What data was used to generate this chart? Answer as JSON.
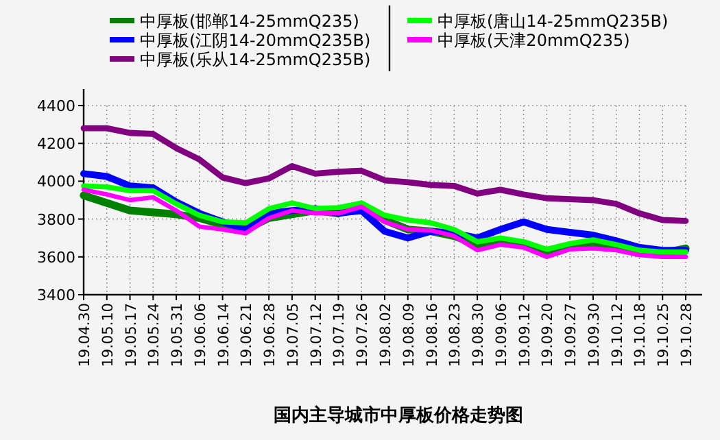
{
  "chart_data": {
    "type": "line",
    "title": "国内主导城市中厚板价格走势图",
    "categories": [
      "19.04.30",
      "19.05.10",
      "19.05.17",
      "19.05.24",
      "19.05.31",
      "19.06.06",
      "19.06.14",
      "19.06.21",
      "19.06.28",
      "19.07.05",
      "19.07.12",
      "19.07.19",
      "19.07.26",
      "19.08.02",
      "19.08.09",
      "19.08.16",
      "19.08.23",
      "19.08.30",
      "19.09.06",
      "19.09.12",
      "19.09.20",
      "19.09.27",
      "19.09.30",
      "19.10.12",
      "19.10.18",
      "19.10.25",
      "19.10.28"
    ],
    "series": [
      {
        "name": "中厚板(邯郸14-25mmQ235)",
        "color": "#008000",
        "values": [
          3925,
          3885,
          3845,
          3835,
          3825,
          3805,
          3770,
          3745,
          3805,
          3825,
          3845,
          3830,
          3865,
          3795,
          3745,
          3735,
          3710,
          3665,
          3675,
          3665,
          3625,
          3660,
          3675,
          3650,
          3620,
          3620,
          3645
        ]
      },
      {
        "name": "中厚板(江阴14-20mmQ235B)",
        "color": "#0000ff",
        "values": [
          4040,
          4025,
          3975,
          3965,
          3890,
          3830,
          3785,
          3745,
          3830,
          3845,
          3855,
          3830,
          3845,
          3735,
          3700,
          3735,
          3725,
          3700,
          3745,
          3785,
          3745,
          3730,
          3715,
          3685,
          3650,
          3635,
          3635
        ]
      },
      {
        "name": "中厚板(乐从14-25mmQ235B)",
        "color": "#800080",
        "values": [
          4280,
          4280,
          4255,
          4250,
          4175,
          4115,
          4020,
          3990,
          4015,
          4080,
          4040,
          4050,
          4055,
          4005,
          3995,
          3980,
          3975,
          3935,
          3955,
          3930,
          3910,
          3905,
          3900,
          3880,
          3830,
          3795,
          3790
        ]
      },
      {
        "name": "中厚板(唐山14-25mmQ235B)",
        "color": "#00ff00",
        "values": [
          3975,
          3970,
          3950,
          3950,
          3880,
          3820,
          3785,
          3780,
          3855,
          3885,
          3855,
          3860,
          3885,
          3820,
          3795,
          3780,
          3745,
          3680,
          3700,
          3680,
          3640,
          3670,
          3690,
          3665,
          3635,
          3625,
          3625
        ]
      },
      {
        "name": "中厚板(天津20mmQ235)",
        "color": "#ff00ff",
        "values": [
          3955,
          3930,
          3900,
          3915,
          3845,
          3760,
          3745,
          3725,
          3805,
          3845,
          3830,
          3830,
          3865,
          3785,
          3745,
          3740,
          3710,
          3635,
          3665,
          3650,
          3600,
          3640,
          3645,
          3635,
          3610,
          3600,
          3600
        ]
      }
    ],
    "ylim": [
      3400,
      4400
    ],
    "yticks": [
      3400,
      3600,
      3800,
      4000,
      4200,
      4400
    ],
    "grid": true,
    "legend": "top",
    "line_style": "solid",
    "marker": "none"
  }
}
